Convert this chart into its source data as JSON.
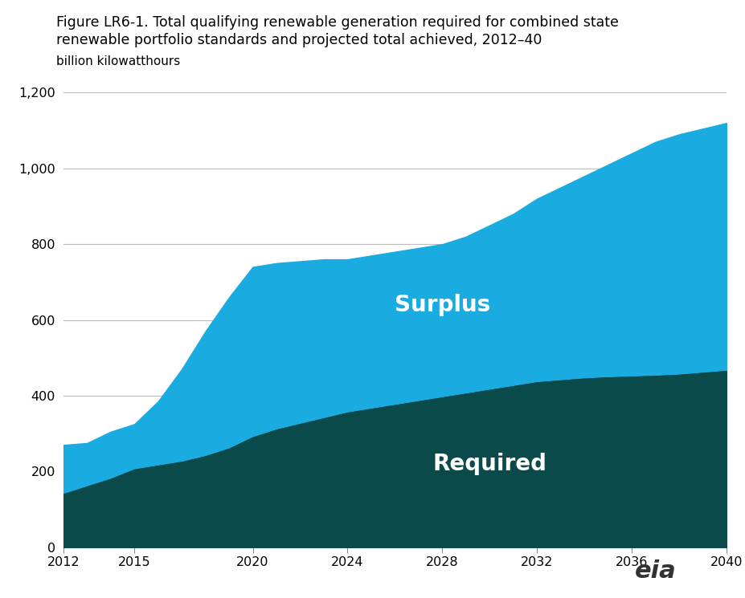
{
  "title_line1": "Figure LR6-1. Total qualifying renewable generation required for combined state",
  "title_line2": "renewable portfolio standards and projected total achieved, 2012–40",
  "ylabel": "billion kilowatthours",
  "xlim": [
    2012,
    2040
  ],
  "ylim": [
    0,
    1200
  ],
  "yticks": [
    0,
    200,
    400,
    600,
    800,
    1000,
    1200
  ],
  "xticks": [
    2012,
    2015,
    2020,
    2024,
    2028,
    2032,
    2036,
    2040
  ],
  "color_required": "#0a4a4a",
  "color_surplus": "#1aabe0",
  "label_required": "Required",
  "years": [
    2012,
    2013,
    2014,
    2015,
    2016,
    2017,
    2018,
    2019,
    2020,
    2021,
    2022,
    2023,
    2024,
    2025,
    2026,
    2027,
    2028,
    2029,
    2030,
    2031,
    2032,
    2033,
    2034,
    2035,
    2036,
    2037,
    2038,
    2039,
    2040
  ],
  "required": [
    140,
    160,
    180,
    205,
    215,
    225,
    240,
    260,
    290,
    310,
    325,
    340,
    355,
    365,
    375,
    385,
    395,
    405,
    415,
    425,
    435,
    440,
    445,
    448,
    450,
    452,
    455,
    460,
    465
  ],
  "total": [
    270,
    275,
    305,
    325,
    385,
    470,
    570,
    660,
    740,
    750,
    755,
    760,
    760,
    770,
    780,
    790,
    800,
    820,
    850,
    880,
    920,
    950,
    980,
    1010,
    1040,
    1070,
    1090,
    1105,
    1120
  ]
}
